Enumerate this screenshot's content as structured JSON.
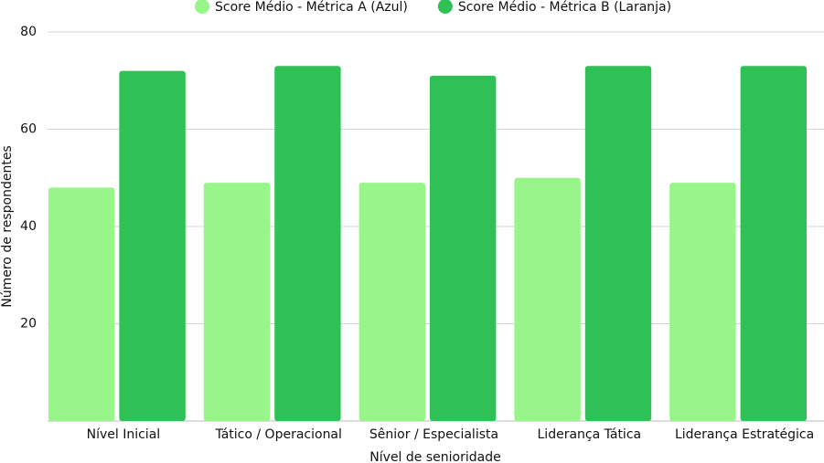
{
  "chart_data": {
    "type": "bar",
    "x_label": "Nível de senioridade",
    "y_label": "Número de respondentes",
    "categories": [
      "Nível Inicial",
      "Tático / Operacional",
      "Sênior / Especialista",
      "Liderança Tática",
      "Liderança Estratégica"
    ],
    "series": [
      {
        "name": "Score Médio - Métrica A (Azul)",
        "color": "#98f58a",
        "values": [
          48,
          49,
          49,
          50,
          49
        ]
      },
      {
        "name": "Score Médio - Métrica B (Laranja)",
        "color": "#2fc155",
        "values": [
          72,
          73,
          71,
          73,
          73
        ]
      }
    ],
    "ylim": [
      0,
      80
    ],
    "yticks": [
      20,
      40,
      60,
      80
    ],
    "grid": true,
    "legend": "top"
  }
}
